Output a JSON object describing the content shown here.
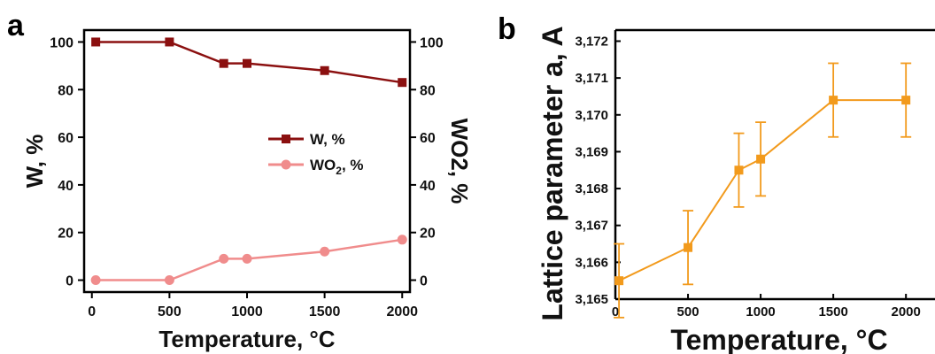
{
  "panels": {
    "a": {
      "letter": "a"
    },
    "b": {
      "letter": "b"
    }
  },
  "colors": {
    "w": "#8b1010",
    "wo2": "#f08c8c",
    "lattice": "#f29a1c",
    "axis": "#000000"
  },
  "chart_data": [
    {
      "type": "line",
      "panel": "a",
      "xlabel": "Temperature, °C",
      "ylabel": "W, %",
      "y2label": "WO2, %",
      "xlim": [
        -50,
        2050
      ],
      "ylim": [
        -5,
        105
      ],
      "xticks": [
        "0",
        "500",
        "1000",
        "1500",
        "2000"
      ],
      "xtick_values": [
        0,
        500,
        1000,
        1500,
        2000
      ],
      "yticks": [
        "0",
        "20",
        "40",
        "60",
        "80",
        "100"
      ],
      "ytick_values": [
        0,
        20,
        40,
        60,
        80,
        100
      ],
      "y2ticks": [
        "0",
        "20",
        "40",
        "60",
        "80",
        "100"
      ],
      "legend_position": "center-right",
      "series": [
        {
          "name": "W, %",
          "legend": {
            "main": "W, %",
            "sub": ""
          },
          "marker": "square",
          "x": [
            25,
            500,
            850,
            1000,
            1500,
            2000
          ],
          "y": [
            100,
            100,
            91,
            91,
            88,
            83
          ]
        },
        {
          "name": "WO2, %",
          "legend": {
            "main": "WO",
            "sub": "2",
            "rest": ", %"
          },
          "marker": "circle",
          "x": [
            25,
            500,
            850,
            1000,
            1500,
            2000
          ],
          "y": [
            0,
            0,
            9,
            9,
            12,
            17
          ]
        }
      ]
    },
    {
      "type": "line",
      "panel": "b",
      "xlabel": "Temperature, °C",
      "ylabel": "Lattice parameter a, A",
      "xlim": [
        0,
        2200
      ],
      "ylim": [
        3.165,
        3.1723
      ],
      "xticks": [
        "0",
        "500",
        "1000",
        "1500",
        "2000"
      ],
      "xtick_values": [
        0,
        500,
        1000,
        1500,
        2000
      ],
      "yticks": [
        "3,165",
        "3,166",
        "3,167",
        "3,168",
        "3,169",
        "3,170",
        "3,171",
        "3,172"
      ],
      "ytick_values": [
        3.165,
        3.166,
        3.167,
        3.168,
        3.169,
        3.17,
        3.171,
        3.172
      ],
      "series": [
        {
          "name": "Lattice parameter",
          "marker": "square",
          "x": [
            25,
            500,
            850,
            1000,
            1500,
            2000
          ],
          "y": [
            3.1655,
            3.1664,
            3.1685,
            3.1688,
            3.1704,
            3.1704
          ],
          "error": [
            0.001,
            0.001,
            0.001,
            0.001,
            0.001,
            0.001
          ]
        }
      ]
    }
  ]
}
